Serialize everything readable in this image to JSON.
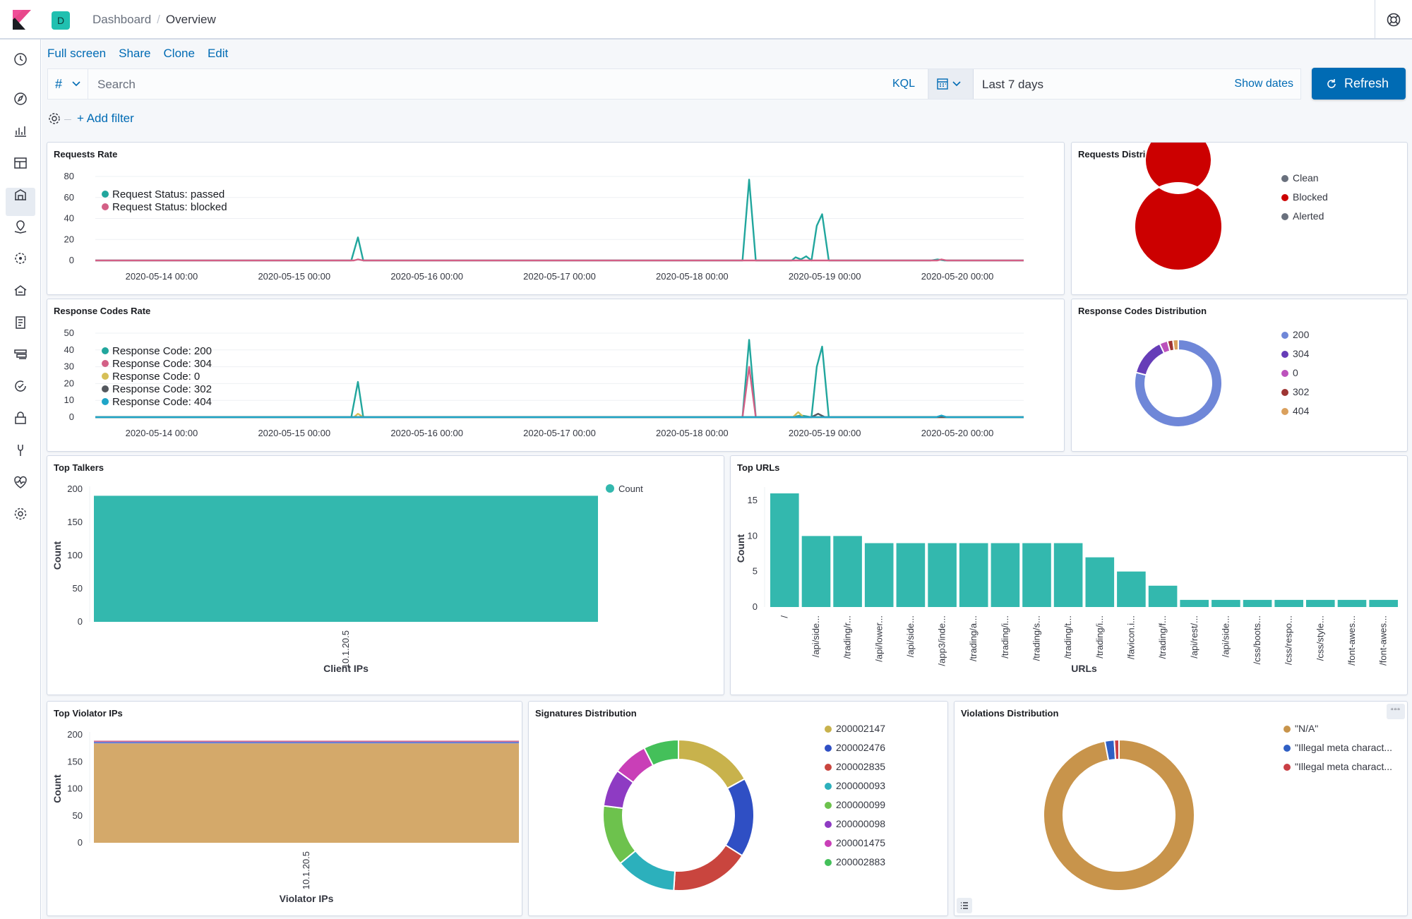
{
  "header": {
    "space_initial": "D",
    "breadcrumb": [
      "Dashboard",
      "Overview"
    ]
  },
  "nav_icons": [
    "clock-icon",
    "compass-icon",
    "visualize-icon",
    "dashboard-icon",
    "canvas-icon",
    "maps-icon",
    "ml-icon",
    "infra-icon",
    "logs-icon",
    "apm-icon",
    "uptime-icon",
    "siem-icon",
    "devtools-icon",
    "monitoring-icon",
    "management-icon"
  ],
  "toolbar": {
    "links": [
      "Full screen",
      "Share",
      "Clone",
      "Edit"
    ],
    "lang_symbol": "#",
    "search_placeholder": "Search",
    "kql_label": "KQL",
    "date_range": "Last 7 days",
    "show_dates": "Show dates",
    "refresh_label": "Refresh",
    "add_filter": "+ Add filter"
  },
  "colors": {
    "accent": "#006bb4",
    "teal": "#21a69d",
    "red": "#d36086",
    "blocked": "#cc0000"
  },
  "panels": {
    "requests_rate": {
      "title": "Requests Rate"
    },
    "requests_distribution": {
      "title": "Requests Distribution"
    },
    "response_codes_rate": {
      "title": "Response Codes Rate"
    },
    "response_codes_distribution": {
      "title": "Response Codes Distribution"
    },
    "top_talkers": {
      "title": "Top Talkers"
    },
    "top_urls": {
      "title": "Top URLs"
    },
    "top_violator_ips": {
      "title": "Top Violator IPs"
    },
    "signatures_distribution": {
      "title": "Signatures Distribution"
    },
    "violations_distribution": {
      "title": "Violations Distribution"
    }
  },
  "chart_data": [
    {
      "id": "requests_rate",
      "type": "line",
      "title": "Requests Rate",
      "x_ticks": [
        "2020-05-14 00:00",
        "2020-05-15 00:00",
        "2020-05-16 00:00",
        "2020-05-17 00:00",
        "2020-05-18 00:00",
        "2020-05-19 00:00",
        "2020-05-20 00:00"
      ],
      "y_ticks": [
        0,
        20,
        40,
        60,
        80
      ],
      "ylim": [
        0,
        80
      ],
      "xlim_days": [
        -0.5,
        6.5
      ],
      "series": [
        {
          "name": "Request Status: passed",
          "color": "#21a69d",
          "points": [
            [
              -0.5,
              0
            ],
            [
              1.43,
              0
            ],
            [
              1.48,
              22
            ],
            [
              1.52,
              0
            ],
            [
              4.38,
              0
            ],
            [
              4.43,
              77
            ],
            [
              4.48,
              0
            ],
            [
              4.75,
              0
            ],
            [
              4.78,
              3
            ],
            [
              4.82,
              1
            ],
            [
              4.86,
              4
            ],
            [
              4.9,
              0
            ],
            [
              4.94,
              33
            ],
            [
              4.98,
              44
            ],
            [
              5.03,
              0
            ],
            [
              5.8,
              0
            ],
            [
              5.85,
              1
            ],
            [
              5.9,
              0
            ],
            [
              6.5,
              0
            ]
          ]
        },
        {
          "name": "Request Status: blocked",
          "color": "#d36086",
          "points": [
            [
              -0.5,
              0
            ],
            [
              1.45,
              0
            ],
            [
              1.48,
              1
            ],
            [
              1.52,
              0
            ],
            [
              5.85,
              0
            ],
            [
              5.88,
              1
            ],
            [
              5.92,
              0
            ],
            [
              6.5,
              0
            ]
          ]
        }
      ]
    },
    {
      "id": "response_codes_rate",
      "type": "line",
      "title": "Response Codes Rate",
      "x_ticks": [
        "2020-05-14 00:00",
        "2020-05-15 00:00",
        "2020-05-16 00:00",
        "2020-05-17 00:00",
        "2020-05-18 00:00",
        "2020-05-19 00:00",
        "2020-05-20 00:00"
      ],
      "y_ticks": [
        0,
        10,
        20,
        30,
        40,
        50
      ],
      "ylim": [
        0,
        50
      ],
      "xlim_days": [
        -0.5,
        6.5
      ],
      "series": [
        {
          "name": "Response Code: 200",
          "color": "#21a69d",
          "points": [
            [
              -0.5,
              0
            ],
            [
              1.43,
              0
            ],
            [
              1.48,
              21
            ],
            [
              1.52,
              0
            ],
            [
              4.38,
              0
            ],
            [
              4.43,
              46
            ],
            [
              4.48,
              0
            ],
            [
              4.75,
              0
            ],
            [
              4.82,
              1
            ],
            [
              4.9,
              0
            ],
            [
              4.94,
              30
            ],
            [
              4.98,
              42
            ],
            [
              5.03,
              0
            ],
            [
              6.5,
              0
            ]
          ]
        },
        {
          "name": "Response Code: 304",
          "color": "#d36086",
          "points": [
            [
              -0.5,
              0
            ],
            [
              4.38,
              0
            ],
            [
              4.43,
              30
            ],
            [
              4.48,
              0
            ],
            [
              6.5,
              0
            ]
          ]
        },
        {
          "name": "Response Code: 0",
          "color": "#d6bf57",
          "points": [
            [
              -0.5,
              0
            ],
            [
              1.45,
              0
            ],
            [
              1.48,
              2
            ],
            [
              1.52,
              0
            ],
            [
              4.76,
              0
            ],
            [
              4.8,
              3
            ],
            [
              4.84,
              0
            ],
            [
              6.5,
              0
            ]
          ]
        },
        {
          "name": "Response Code: 302",
          "color": "#54585e",
          "points": [
            [
              -0.5,
              0
            ],
            [
              4.9,
              0
            ],
            [
              4.95,
              2
            ],
            [
              5.0,
              0
            ],
            [
              6.5,
              0
            ]
          ]
        },
        {
          "name": "Response Code: 404",
          "color": "#1ea5c8",
          "points": [
            [
              -0.5,
              0
            ],
            [
              5.84,
              0
            ],
            [
              5.88,
              1
            ],
            [
              5.92,
              0
            ],
            [
              6.5,
              0
            ]
          ]
        }
      ]
    },
    {
      "id": "requests_distribution",
      "type": "pie",
      "title": "Requests Distribution",
      "slices": [
        {
          "label": "Clean",
          "value": 0,
          "color": "#69707d"
        },
        {
          "label": "Blocked",
          "value": 100,
          "color": "#cc0000"
        },
        {
          "label": "Alerted",
          "value": 0,
          "color": "#69707d"
        }
      ]
    },
    {
      "id": "response_codes_distribution",
      "type": "pie",
      "title": "Response Codes Distribution",
      "slices": [
        {
          "label": "200",
          "value": 79,
          "color": "#6f87d8"
        },
        {
          "label": "304",
          "value": 14,
          "color": "#663db8"
        },
        {
          "label": "0",
          "value": 3,
          "color": "#bc52bc"
        },
        {
          "label": "302",
          "value": 2,
          "color": "#9e3533"
        },
        {
          "label": "404",
          "value": 2,
          "color": "#daa05d"
        }
      ]
    },
    {
      "id": "top_talkers",
      "type": "bar",
      "title": "Top Talkers",
      "xlabel": "Client IPs",
      "ylabel": "Count",
      "categories": [
        "10.1.20.5"
      ],
      "series": [
        {
          "name": "Count",
          "color": "#33b8ae",
          "values": [
            190
          ]
        }
      ],
      "y_ticks": [
        0,
        50,
        100,
        150,
        200
      ],
      "ylim": [
        0,
        200
      ]
    },
    {
      "id": "top_urls",
      "type": "bar",
      "title": "Top URLs",
      "xlabel": "URLs",
      "ylabel": "Count",
      "categories": [
        "/",
        "/api/side...",
        "/trading/r...",
        "/api/lower...",
        "/api/side...",
        "/app3/inde...",
        "/trading/a...",
        "/trading/i...",
        "/trading/s...",
        "/trading/t...",
        "/trading/i...",
        "/favicon.i...",
        "/trading/f...",
        "/api/rest/...",
        "/api/side...",
        "/css/boots...",
        "/css/respo...",
        "/css/style...",
        "/font-awes...",
        "/font-awes..."
      ],
      "series": [
        {
          "name": "Count",
          "color": "#33b8ae",
          "values": [
            16,
            10,
            10,
            9,
            9,
            9,
            9,
            9,
            9,
            9,
            7,
            5,
            3,
            1,
            1,
            1,
            1,
            1,
            1,
            1
          ]
        }
      ],
      "y_ticks": [
        0,
        5,
        10,
        15
      ],
      "ylim": [
        0,
        16.5
      ]
    },
    {
      "id": "top_violator_ips",
      "type": "bar",
      "title": "Top Violator IPs",
      "xlabel": "Violator IPs",
      "ylabel": "Count",
      "categories": [
        "10.1.20.5"
      ],
      "series": [
        {
          "name": "\"N/A\"",
          "color": "#d4a96a",
          "values": [
            184
          ]
        },
        {
          "name": "\"Illegal meta charact...",
          "color": "#6a7fd6",
          "values": [
            3
          ]
        },
        {
          "name": "\"Illegal meta charact...",
          "color": "#d36086",
          "values": [
            2
          ]
        }
      ],
      "y_ticks": [
        0,
        50,
        100,
        150,
        200
      ],
      "ylim": [
        0,
        200
      ]
    },
    {
      "id": "signatures_distribution",
      "type": "pie",
      "title": "Signatures Distribution",
      "slices": [
        {
          "label": "200002147",
          "value": 17,
          "color": "#c8b24c"
        },
        {
          "label": "200002476",
          "value": 17,
          "color": "#2f4fc4"
        },
        {
          "label": "200002835",
          "value": 17,
          "color": "#c9453e"
        },
        {
          "label": "200000093",
          "value": 13,
          "color": "#2cb0bc"
        },
        {
          "label": "200000099",
          "value": 13,
          "color": "#6dc24d"
        },
        {
          "label": "200000098",
          "value": 8,
          "color": "#8e3bc3"
        },
        {
          "label": "200001475",
          "value": 7.5,
          "color": "#c93fb7"
        },
        {
          "label": "200002883",
          "value": 7.5,
          "color": "#44c05a"
        }
      ]
    },
    {
      "id": "violations_distribution",
      "type": "pie",
      "title": "Violations Distribution",
      "slices": [
        {
          "label": "\"N/A\"",
          "value": 97,
          "color": "#c8944b"
        },
        {
          "label": "\"Illegal meta charact...",
          "value": 2,
          "color": "#2f5fc4"
        },
        {
          "label": "\"Illegal meta charact...",
          "value": 1,
          "color": "#c93f45"
        }
      ]
    }
  ]
}
